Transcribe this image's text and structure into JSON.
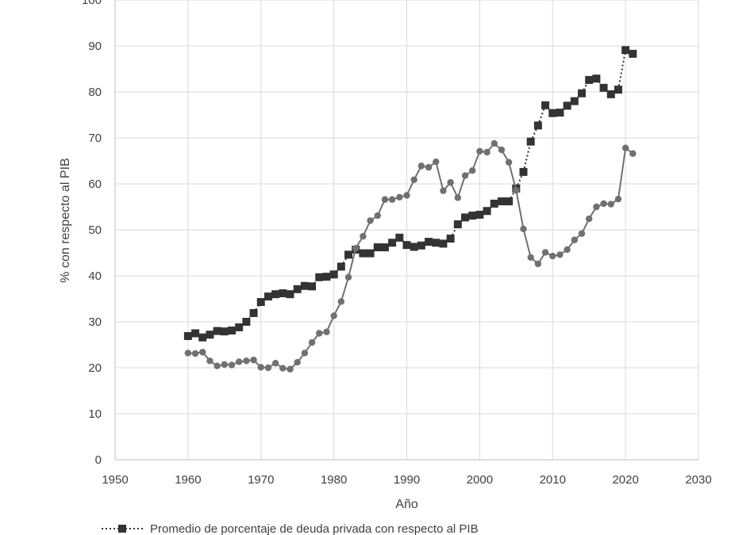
{
  "chart_data": {
    "type": "line",
    "title": "",
    "xlabel": "Año",
    "ylabel": "% con respecto al PIB",
    "xlim": [
      1950,
      2030
    ],
    "ylim": [
      0,
      100
    ],
    "xticks": [
      1950,
      1960,
      1970,
      1980,
      1990,
      2000,
      2010,
      2020,
      2030
    ],
    "yticks": [
      0,
      10,
      20,
      30,
      40,
      50,
      60,
      70,
      80,
      90,
      100
    ],
    "grid": true,
    "legend_position": "bottom-left",
    "series": [
      {
        "name": "Promedio de porcentaje de deuda privada con respecto al PIB",
        "marker": "square",
        "color": "#333333",
        "x": [
          1960,
          1961,
          1962,
          1963,
          1964,
          1965,
          1966,
          1967,
          1968,
          1969,
          1970,
          1971,
          1972,
          1973,
          1974,
          1975,
          1976,
          1977,
          1978,
          1979,
          1980,
          1981,
          1982,
          1983,
          1984,
          1985,
          1986,
          1987,
          1988,
          1989,
          1990,
          1991,
          1992,
          1993,
          1994,
          1995,
          1996,
          1997,
          1998,
          1999,
          2000,
          2001,
          2002,
          2003,
          2004,
          2005,
          2006,
          2007,
          2008,
          2009,
          2010,
          2011,
          2012,
          2013,
          2014,
          2015,
          2016,
          2017,
          2018,
          2019,
          2020,
          2021
        ],
        "values": [
          26.9,
          27.5,
          26.6,
          27.2,
          28.0,
          27.9,
          28.1,
          28.8,
          30.0,
          31.9,
          34.3,
          35.5,
          36.0,
          36.2,
          36.0,
          37.1,
          37.8,
          37.7,
          39.7,
          39.8,
          40.3,
          42.0,
          44.6,
          45.7,
          44.9,
          44.9,
          46.2,
          46.2,
          47.2,
          48.3,
          46.7,
          46.3,
          46.6,
          47.4,
          47.2,
          47.0,
          48.1,
          51.2,
          52.7,
          53.1,
          53.3,
          54.1,
          55.7,
          56.2,
          56.2,
          59.0,
          62.6,
          69.2,
          72.7,
          77.1,
          75.4,
          75.5,
          77.0,
          78.0,
          79.7,
          82.6,
          82.9,
          80.9,
          79.5,
          80.5,
          89.1,
          88.3
        ]
      },
      {
        "name": "",
        "marker": "circle",
        "color": "#707070",
        "x": [
          1960,
          1961,
          1962,
          1963,
          1964,
          1965,
          1966,
          1967,
          1968,
          1969,
          1970,
          1971,
          1972,
          1973,
          1974,
          1975,
          1976,
          1977,
          1978,
          1979,
          1980,
          1981,
          1982,
          1983,
          1984,
          1985,
          1986,
          1987,
          1988,
          1989,
          1990,
          1991,
          1992,
          1993,
          1994,
          1995,
          1996,
          1997,
          1998,
          1999,
          2000,
          2001,
          2002,
          2003,
          2004,
          2005,
          2006,
          2007,
          2008,
          2009,
          2010,
          2011,
          2012,
          2013,
          2014,
          2015,
          2016,
          2017,
          2018,
          2019,
          2020,
          2021
        ],
        "values": [
          23.2,
          23.1,
          23.4,
          21.5,
          20.4,
          20.7,
          20.6,
          21.3,
          21.5,
          21.7,
          20.1,
          20.0,
          21.0,
          19.9,
          19.7,
          21.2,
          23.2,
          25.5,
          27.5,
          27.8,
          31.3,
          34.4,
          39.7,
          46.0,
          48.6,
          52.0,
          53.1,
          56.6,
          56.6,
          57.1,
          57.5,
          60.9,
          63.9,
          63.6,
          64.8,
          58.5,
          60.3,
          57.0,
          61.8,
          62.9,
          67.1,
          66.9,
          68.8,
          67.4,
          64.7,
          58.6,
          50.2,
          44.0,
          42.6,
          45.1,
          44.3,
          44.6,
          45.7,
          47.8,
          49.2,
          52.4,
          55.0,
          55.7,
          55.6,
          56.7,
          67.8,
          66.6
        ]
      }
    ]
  }
}
